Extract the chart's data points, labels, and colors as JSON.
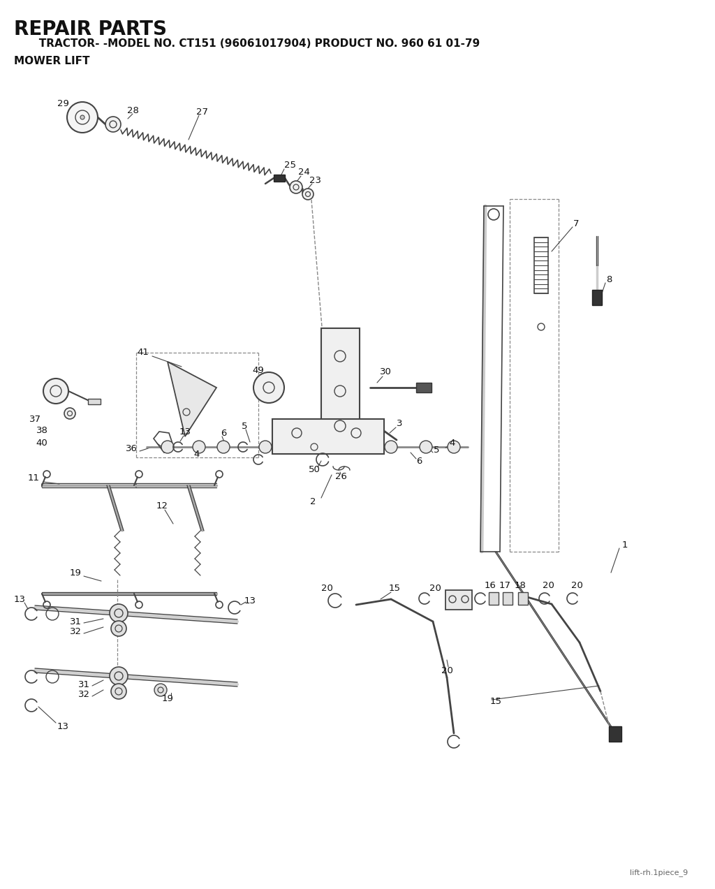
{
  "title_line1": "REPAIR PARTS",
  "title_line2": "   TRACTOR- -MODEL NO. CT151 (96061017904) PRODUCT NO. 960 61 01-79",
  "title_line3": "MOWER LIFT",
  "footer_text": "lift-rh.1piece_9",
  "bg_color": "#ffffff",
  "lc": "#444444",
  "tc": "#111111"
}
